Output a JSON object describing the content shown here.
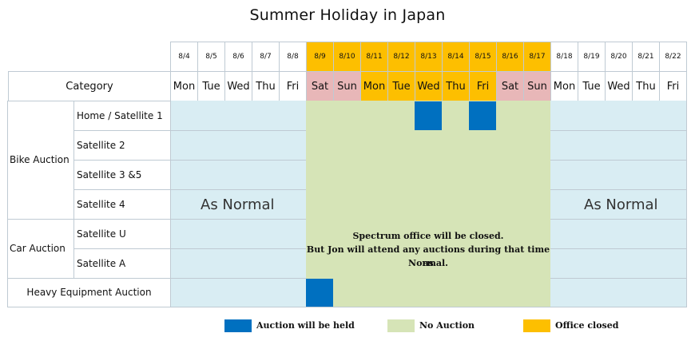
{
  "title": "Summer Holiday in Japan",
  "header": {
    "category_label": "Category",
    "days": [
      {
        "date": "8/4",
        "day": "Mon",
        "state": "normal"
      },
      {
        "date": "8/5",
        "day": "Tue",
        "state": "normal"
      },
      {
        "date": "8/6",
        "day": "Wed",
        "state": "normal"
      },
      {
        "date": "8/7",
        "day": "Thu",
        "state": "normal"
      },
      {
        "date": "8/8",
        "day": "Fri",
        "state": "normal"
      },
      {
        "date": "8/9",
        "day": "Sat",
        "state": "weekend-closed"
      },
      {
        "date": "8/10",
        "day": "Sun",
        "state": "weekend-closed"
      },
      {
        "date": "8/11",
        "day": "Mon",
        "state": "office-closed"
      },
      {
        "date": "8/12",
        "day": "Tue",
        "state": "office-closed"
      },
      {
        "date": "8/13",
        "day": "Wed",
        "state": "office-closed"
      },
      {
        "date": "8/14",
        "day": "Thu",
        "state": "office-closed"
      },
      {
        "date": "8/15",
        "day": "Fri",
        "state": "office-closed"
      },
      {
        "date": "8/16",
        "day": "Sat",
        "state": "weekend-closed"
      },
      {
        "date": "8/17",
        "day": "Sun",
        "state": "weekend-closed"
      },
      {
        "date": "8/18",
        "day": "Mon",
        "state": "normal"
      },
      {
        "date": "8/19",
        "day": "Tue",
        "state": "normal"
      },
      {
        "date": "8/20",
        "day": "Wed",
        "state": "normal"
      },
      {
        "date": "8/21",
        "day": "Thu",
        "state": "normal"
      },
      {
        "date": "8/22",
        "day": "Fri",
        "state": "normal"
      }
    ]
  },
  "groups": {
    "bike": "Bike Auction",
    "car": "Car Auction"
  },
  "rows": {
    "home_satellite_1": "Home / Satellite 1",
    "satellite_2": "Satellite 2",
    "satellite_3_5": "Satellite 3 &5",
    "satellite_4": "Satellite 4",
    "satellite_u": "Satellite U",
    "satellite_a": "Satellite A",
    "heavy_equipment": "Heavy Equipment Auction"
  },
  "as_normal_left": "As Normal",
  "as_normal_right": "As Normal",
  "notice": {
    "line1": "Spectrum office will be closed.",
    "line2": "But Jon will attend any auctions during that time as",
    "line3": "Normal."
  },
  "legend": {
    "held": "Auction will be held",
    "no_auction": "No Auction",
    "office_closed": "Office closed"
  },
  "colors": {
    "auction_held": "#0070c0",
    "no_auction": "#d6e4b7",
    "office_closed": "#fdbf00",
    "weekend_closed": "#e8b7b8",
    "normal_period": "#d9edf3"
  },
  "auction_held_dates": {
    "home_satellite_1": [
      "8/13",
      "8/15"
    ],
    "heavy_equipment": [
      "8/9"
    ]
  }
}
